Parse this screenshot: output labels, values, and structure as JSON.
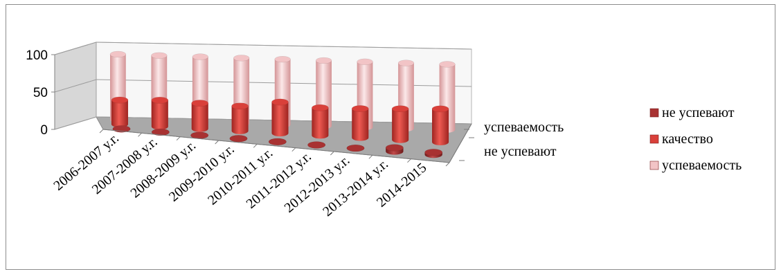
{
  "chart_data": {
    "type": "bar",
    "subtype": "3d-cylinder",
    "categories": [
      "2006-2007 у.г.",
      "2007-2008 у.г.",
      "2008-2009 у.г.",
      "2009-2010 у.г.",
      "2010-2011 у.г.",
      "2011-2012 у.г.",
      "2012-2013 у.г.",
      "2013-2014 у.г.",
      "2014-2015"
    ],
    "series": [
      {
        "name": "не успевают",
        "values": [
          0,
          0,
          0,
          0,
          0,
          0,
          0,
          5,
          3
        ],
        "color": "#a83232"
      },
      {
        "name": "качество",
        "values": [
          35,
          38,
          37,
          36,
          45,
          40,
          42,
          45,
          48
        ],
        "color": "#d9403a"
      },
      {
        "name": "успеваемость",
        "values": [
          100,
          100,
          100,
          100,
          100,
          100,
          100,
          100,
          100
        ],
        "color": "#f2c4c6"
      }
    ],
    "yticks": [
      "0",
      "50",
      "100"
    ],
    "ylim": [
      0,
      100
    ],
    "depth_labels": [
      "успеваемость",
      "не успевают"
    ],
    "legend_position": "right",
    "grid": true
  }
}
